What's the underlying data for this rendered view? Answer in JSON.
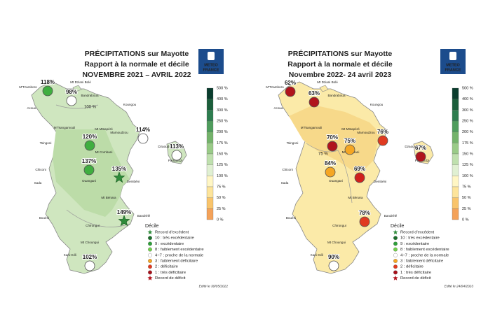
{
  "maps": [
    {
      "title": [
        "PRÉCIPITATIONS sur Mayotte",
        "Rapport à la normale et décile",
        "NOVEMBRE 2021 – AVRIL 2022"
      ],
      "logo": [
        "METEO",
        "FRANCE"
      ],
      "fill": "#cfe6bf",
      "scale": [
        "500 %",
        "400 %",
        "300 %",
        "250 %",
        "200 %",
        "175 %",
        "150 %",
        "125 %",
        "100 %",
        "75 %",
        "50 %",
        "25 %",
        "0 %"
      ],
      "scale_colors": [
        "#0b3d2e",
        "#1b5e3b",
        "#2e7d4f",
        "#4f9d5d",
        "#74b36b",
        "#9acb88",
        "#bfe0ae",
        "#e0f0d2",
        "#fff6c4",
        "#fde49a",
        "#f9c46b",
        "#f4a259"
      ],
      "contour": "100 %",
      "places": [
        "M'Tzamboro",
        "Mt Dziani Bolé",
        "Bandraboua",
        "Koungou",
        "Acoua",
        "M'Tsangamouli",
        "Mt Mtsapéré",
        "Mamoudzou",
        "Dzaoudzi",
        "Pamandzi",
        "Tsingoni",
        "Mt Combani",
        "Chiconi",
        "Sada",
        "Ouangani",
        "Dembéni",
        "Mt Bénara",
        "Bouéni",
        "Bandrélé",
        "Chirongui",
        "Mt Choungui",
        "Kani-Kéli"
      ],
      "stations": [
        {
          "label": "118%",
          "color": "#3fae3f"
        },
        {
          "label": "98%",
          "color": "#ffffff"
        },
        {
          "label": "120%",
          "color": "#3fae3f"
        },
        {
          "label": "114%",
          "color": "#ffffff"
        },
        {
          "label": "113%",
          "color": "#ffffff"
        },
        {
          "label": "137%",
          "color": "#3fae3f"
        },
        {
          "label": "135%",
          "color": "#2e8b3a",
          "marker": "star"
        },
        {
          "label": "149%",
          "color": "#2e8b3a",
          "marker": "star"
        },
        {
          "label": "102%",
          "color": "#ffffff"
        }
      ],
      "legend_title": "Décile",
      "legend": [
        {
          "label": "Record d'excédent",
          "color": "#2e8b3a",
          "marker": "star"
        },
        {
          "label": "10 : très excédentaire",
          "color": "#1b6e2a"
        },
        {
          "label": "9 : excédentaire",
          "color": "#2e9e3a"
        },
        {
          "label": "8 : faiblement excédentaire",
          "color": "#6fcf4a"
        },
        {
          "label": "4~7 : proche de la normale",
          "color": "#ffffff"
        },
        {
          "label": "3 : faiblement déficitaire",
          "color": "#f5a623"
        },
        {
          "label": "2 : déficitaire",
          "color": "#e03a20"
        },
        {
          "label": "1 : très déficitaire",
          "color": "#a8101a"
        },
        {
          "label": "Record de déficit",
          "color": "#b0101a",
          "marker": "star"
        }
      ],
      "edit": "Edité le 30/05/2022"
    },
    {
      "title": [
        "PRÉCIPITATIONS sur Mayotte",
        "Rapport à la normale et décile",
        "Novembre 2022- 24 avril 2023"
      ],
      "logo": [
        "METEO",
        "FRANCE"
      ],
      "fill": "#fbeaa8",
      "scale": [
        "500 %",
        "400 %",
        "300 %",
        "250 %",
        "200 %",
        "175 %",
        "150 %",
        "125 %",
        "100 %",
        "75 %",
        "50 %",
        "25 %",
        "0 %"
      ],
      "scale_colors": [
        "#0b3d2e",
        "#1b5e3b",
        "#2e7d4f",
        "#4f9d5d",
        "#74b36b",
        "#9acb88",
        "#bfe0ae",
        "#e0f0d2",
        "#fff6c4",
        "#fde49a",
        "#f9c46b",
        "#f4a259"
      ],
      "contour": "75 %",
      "places": [
        "M'Tzamboro",
        "Mt Dziani Bolé",
        "Bandraboua",
        "Koungou",
        "Acoua",
        "M'Tsangamouli",
        "Mt Mtsapéré",
        "Mamoudzou",
        "Dzaoudzi",
        "Pamandzi",
        "Tsingoni",
        "Mt Combani",
        "Chiconi",
        "Sada",
        "Ouangani",
        "Dembéni",
        "Mt Bénara",
        "Bouéni",
        "Bandrélé",
        "Chirongui",
        "Mt Choungui",
        "Kani-Kéli"
      ],
      "stations": [
        {
          "label": "62%",
          "color": "#b0141c"
        },
        {
          "label": "63%",
          "color": "#b0141c"
        },
        {
          "label": "70%",
          "color": "#b0141c"
        },
        {
          "label": "76%",
          "color": "#e03a20"
        },
        {
          "label": "67%",
          "color": "#b0141c"
        },
        {
          "label": "84%",
          "color": "#f5a623"
        },
        {
          "label": "75%",
          "color": "#f5a623"
        },
        {
          "label": "69%",
          "color": "#d0201c"
        },
        {
          "label": "78%",
          "color": "#e03a20"
        },
        {
          "label": "90%",
          "color": "#ffffff"
        }
      ],
      "legend_title": "Décile",
      "legend": [
        {
          "label": "Record d'excédent",
          "color": "#2e8b3a",
          "marker": "star"
        },
        {
          "label": "10 : très excédentaire",
          "color": "#1b6e2a"
        },
        {
          "label": "9 : excédentaire",
          "color": "#2e9e3a"
        },
        {
          "label": "8 : faiblement excédentaire",
          "color": "#6fcf4a"
        },
        {
          "label": "4~7 : proche de la normale",
          "color": "#ffffff"
        },
        {
          "label": "3 : faiblement déficitaire",
          "color": "#f5a623"
        },
        {
          "label": "2 : déficitaire",
          "color": "#e03a20"
        },
        {
          "label": "1 : très déficitaire",
          "color": "#a8101a"
        },
        {
          "label": "Record de déficit",
          "color": "#b0101a",
          "marker": "star"
        }
      ],
      "edit": "Edité le 24/04/2023"
    }
  ]
}
